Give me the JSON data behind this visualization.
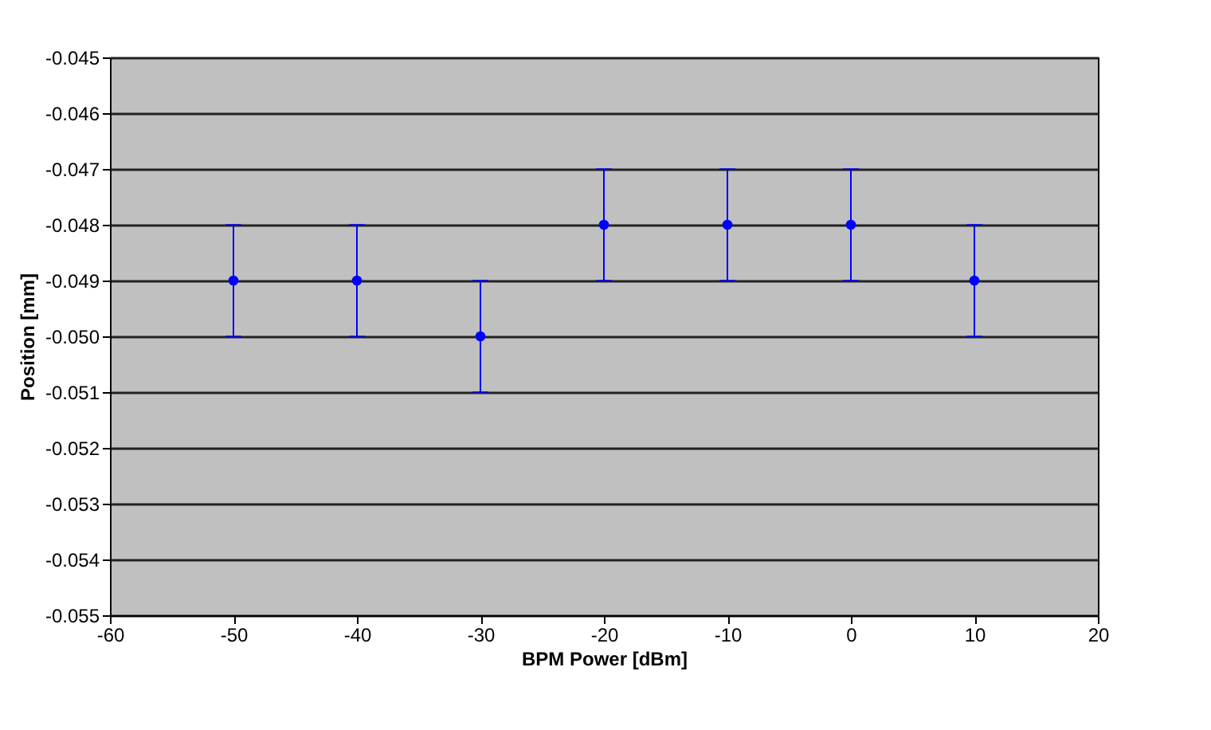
{
  "chart_data": {
    "type": "scatter",
    "xlabel": "BPM Power [dBm]",
    "ylabel": "Position [mm]",
    "x": [
      -50,
      -40,
      -30,
      -20,
      -10,
      0,
      10
    ],
    "series": [
      {
        "color": "#0000ff",
        "values": [
          -0.049,
          -0.049,
          -0.05,
          -0.048,
          -0.048,
          -0.048,
          -0.049
        ],
        "errors": [
          0.001,
          0.001,
          0.001,
          0.001,
          0.001,
          0.001,
          0.001
        ]
      }
    ],
    "xlim": [
      -60,
      20
    ],
    "xticks": [
      -60,
      -50,
      -40,
      -30,
      -20,
      -10,
      0,
      10,
      20
    ],
    "ylim": [
      -0.055,
      -0.045
    ],
    "yticks": [
      {
        "value": -0.055,
        "label": "-0.055"
      },
      {
        "value": -0.054,
        "label": "-0.054"
      },
      {
        "value": -0.053,
        "label": "-0.053"
      },
      {
        "value": -0.052,
        "label": "-0.052"
      },
      {
        "value": -0.051,
        "label": "-0.051"
      },
      {
        "value": -0.05,
        "label": "-0.050"
      },
      {
        "value": -0.049,
        "label": "-0.049"
      },
      {
        "value": -0.048,
        "label": "-0.048"
      },
      {
        "value": -0.047,
        "label": "-0.047"
      },
      {
        "value": -0.046,
        "label": "-0.046"
      },
      {
        "value": -0.045,
        "label": "-0.045"
      }
    ],
    "grid": "y",
    "marker": "circle",
    "legend": false
  }
}
